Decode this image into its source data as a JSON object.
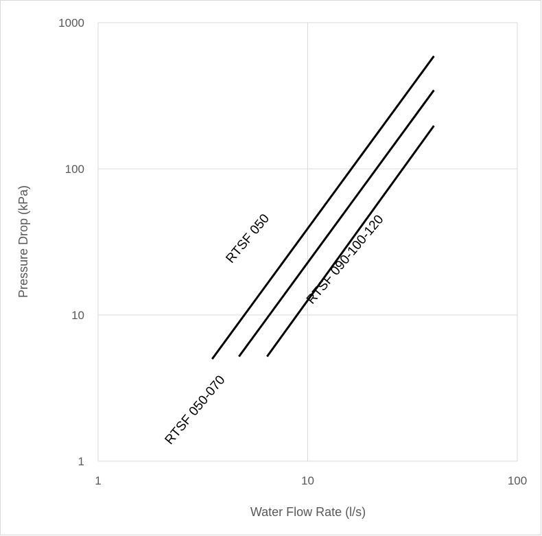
{
  "chart_data": {
    "type": "line",
    "title": "",
    "xlabel": "Water Flow Rate (l/s)",
    "ylabel": "Pressure Drop (kPa)",
    "x_scale": "log",
    "y_scale": "log",
    "xlim": [
      1,
      100
    ],
    "ylim": [
      1,
      1000
    ],
    "x_ticks": [
      1,
      10,
      100
    ],
    "y_ticks": [
      1,
      10,
      100,
      1000
    ],
    "x_tick_labels": [
      "1",
      "10",
      "100"
    ],
    "y_tick_labels": [
      "1",
      "10",
      "100",
      "1000"
    ],
    "grid": "major",
    "legend": "none",
    "series": [
      {
        "name": "RTSF 050",
        "x": [
          3.5,
          40
        ],
        "y": [
          5,
          590
        ],
        "color": "#000000"
      },
      {
        "name": "RTSF 050-070",
        "x": [
          4.7,
          40
        ],
        "y": [
          5.2,
          345
        ],
        "color": "#000000"
      },
      {
        "name": "RTSF 090-100-120",
        "x": [
          6.4,
          40
        ],
        "y": [
          5.2,
          197
        ],
        "color": "#000000"
      }
    ]
  },
  "colors": {
    "grid": "#d9d9d9",
    "axis": "#d9d9d9",
    "text": "#595959",
    "series": "#000000"
  }
}
